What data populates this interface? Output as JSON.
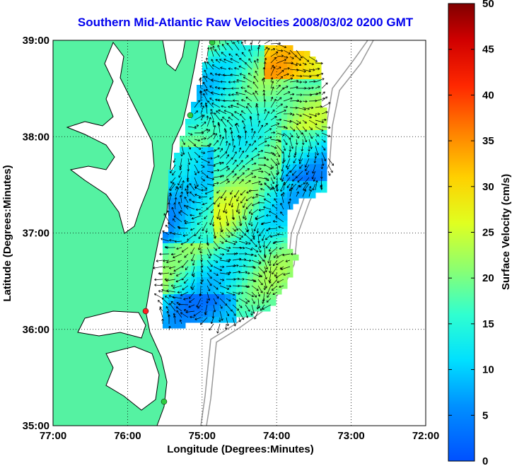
{
  "chart_data": {
    "type": "heatmap",
    "title": "Southern Mid-Atlantic Raw Velocities 2008/03/02 0200 GMT",
    "xlabel": "Longitude (Degrees:Minutes)",
    "ylabel": "Latitude (Degrees:Minutes)",
    "x_ticks": [
      "77:00",
      "76:00",
      "75:00",
      "74:00",
      "73:00",
      "72:00"
    ],
    "y_ticks": [
      "39:00",
      "38:00",
      "37:00",
      "36:00",
      "35:00"
    ],
    "xlim": [
      -77,
      -72
    ],
    "ylim": [
      35,
      39
    ],
    "grid": true,
    "colorbar": {
      "label": "Surface Velocity (cm/s)",
      "ticks": [
        "0",
        "5",
        "10",
        "15",
        "20",
        "25",
        "30",
        "35",
        "40",
        "45",
        "50"
      ],
      "range": [
        0,
        50
      ]
    },
    "colors": {
      "land": "#55f2a2",
      "title": "#0000ee",
      "station_green": "#2ecc40",
      "station_red": "#ff2020"
    }
  }
}
